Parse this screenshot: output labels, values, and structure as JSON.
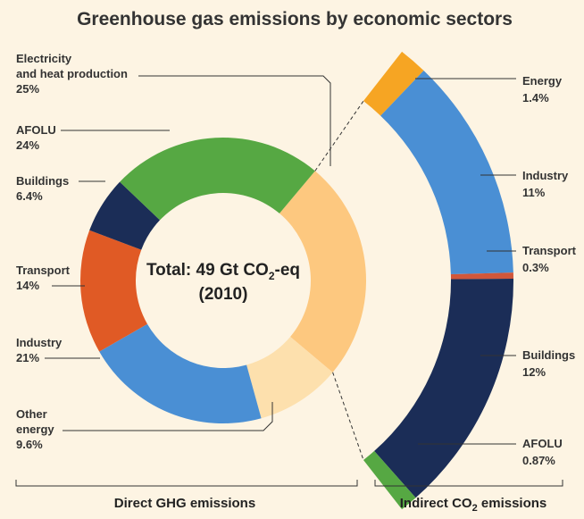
{
  "page": {
    "background": "#fdf4e3"
  },
  "chart_data": [
    {
      "type": "pie",
      "title": "Greenhouse gas emissions by economic sectors",
      "center_label_line1": "Total: 49 Gt CO",
      "center_label_sub": "2",
      "center_label_line1_tail": "-eq",
      "center_label_line2": "(2010)",
      "group_label": "Direct GHG emissions",
      "slices": [
        {
          "name": "Electricity and heat production",
          "label_line1": "Electricity",
          "label_line2": "and heat production",
          "value_label": "25%",
          "value": 25,
          "color": "#fdc87f"
        },
        {
          "name": "Other energy",
          "label_line1": "Other",
          "label_line2": "energy",
          "value_label": "9.6%",
          "value": 9.6,
          "color": "#fde0ad"
        },
        {
          "name": "Industry",
          "label_line1": "Industry",
          "label_line2": "",
          "value_label": "21%",
          "value": 21,
          "color": "#4a8fd4"
        },
        {
          "name": "Transport",
          "label_line1": "Transport",
          "label_line2": "",
          "value_label": "14%",
          "value": 14,
          "color": "#e05a25"
        },
        {
          "name": "Buildings",
          "label_line1": "Buildings",
          "label_line2": "",
          "value_label": "6.4%",
          "value": 6.4,
          "color": "#1b2d57"
        },
        {
          "name": "AFOLU",
          "label_line1": "AFOLU",
          "label_line2": "",
          "value_label": "24%",
          "value": 24,
          "color": "#56a843"
        }
      ]
    },
    {
      "type": "bar",
      "group_label_prefix": "Indirect CO",
      "group_label_sub": "2",
      "group_label_suffix": " emissions",
      "segments": [
        {
          "name": "Energy",
          "value_label": "1.4%",
          "value": 1.4,
          "color": "#f6a523"
        },
        {
          "name": "Industry",
          "value_label": "11%",
          "value": 11,
          "color": "#4a8fd4"
        },
        {
          "name": "Transport",
          "value_label": "0.3%",
          "value": 0.3,
          "color": "#d0573b"
        },
        {
          "name": "Buildings",
          "value_label": "12%",
          "value": 12,
          "color": "#1b2d57"
        },
        {
          "name": "AFOLU",
          "value_label": "0.87%",
          "value": 0.87,
          "color": "#56a843"
        }
      ]
    }
  ]
}
